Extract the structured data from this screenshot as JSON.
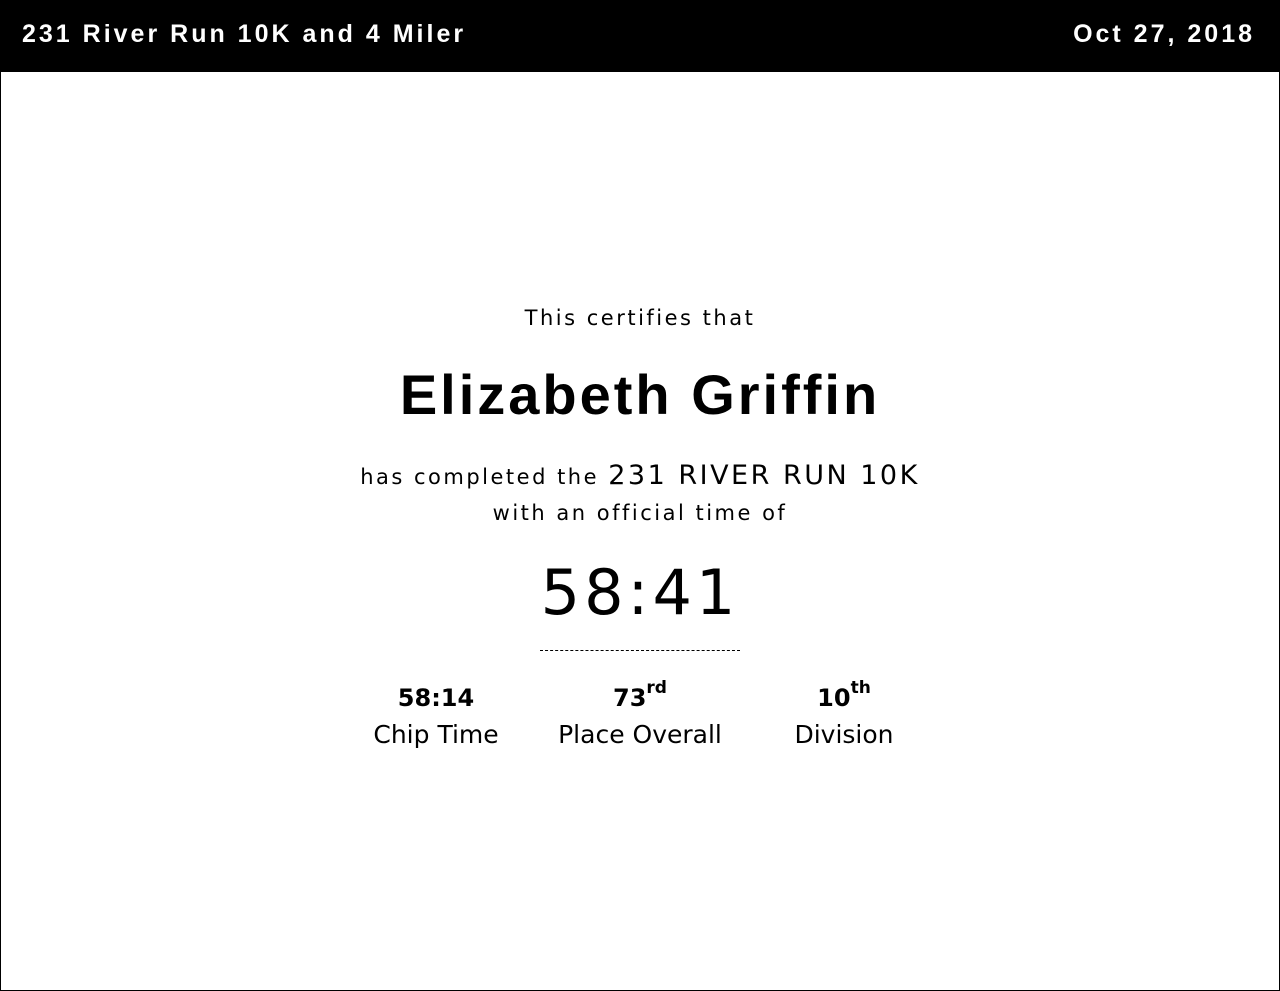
{
  "header": {
    "title": "231 River Run 10K and 4 Miler",
    "date": "Oct 27, 2018"
  },
  "certificate": {
    "intro": "This certifies that",
    "name": "Elizabeth Griffin",
    "completed_prefix": "has completed the",
    "race": "231 RIVER RUN 10K",
    "time_prefix": "with an official time of",
    "official_time": "58:41"
  },
  "stats": [
    {
      "value": "58:14",
      "suffix": "",
      "label": "Chip Time"
    },
    {
      "value": "73",
      "suffix": "rd",
      "label": "Place Overall"
    },
    {
      "value": "10",
      "suffix": "th",
      "label": "Division"
    }
  ]
}
